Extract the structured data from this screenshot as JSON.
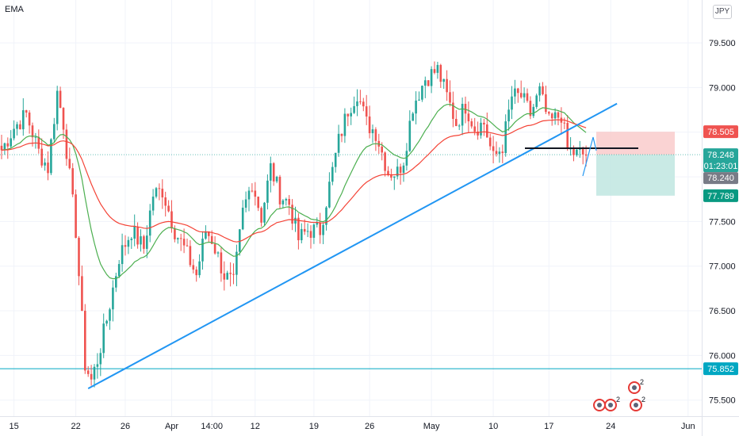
{
  "indicator_label": "EMA",
  "currency_badge": "JPY",
  "colors": {
    "up": "#26a69a",
    "down": "#ef5350",
    "ema_fast": "#4caf50",
    "ema_slow": "#f44336",
    "trendline": "#2196f3",
    "support": "#00a7c2",
    "risk_zone": "#f9c8c8",
    "reward_zone": "#bfe6e1",
    "price_tag": "#26a69a",
    "countdown_tag": "#787b86",
    "stop_tag": "#ef5350",
    "target_tag": "#089981",
    "support_tag": "#00a7c2"
  },
  "chart_data": {
    "type": "candlestick",
    "y_ticks": [
      "79.500",
      "79.000",
      "78.500",
      "78.000",
      "77.500",
      "77.000",
      "76.500",
      "76.000",
      "75.500"
    ],
    "ylim": [
      75.32,
      79.98
    ],
    "x_ticks": [
      "15",
      "22",
      "26",
      "Apr",
      "14:00",
      "12",
      "19",
      "26",
      "May",
      "10",
      "17",
      "24",
      "Jun"
    ],
    "grid": true,
    "price_tags": {
      "stop_loss": "78.505",
      "last_price": "78.248",
      "countdown": "01:23:01",
      "close": "78.240",
      "take_profit": "77.789",
      "support": "75.852"
    },
    "levels": {
      "support": 75.852,
      "horizontal_black": 78.32,
      "last_price": 78.248
    },
    "position": {
      "entry": 78.248,
      "stop": 78.505,
      "target": 77.789
    },
    "trendline": {
      "from": {
        "index": 28,
        "price": 75.63
      },
      "to": {
        "index": 199,
        "price": 78.82
      }
    },
    "candle_keyframes": [
      [
        0,
        78.3
      ],
      [
        4,
        78.55
      ],
      [
        8,
        78.7
      ],
      [
        12,
        78.28
      ],
      [
        15,
        78.1
      ],
      [
        18,
        78.95
      ],
      [
        20,
        78.6
      ],
      [
        24,
        77.4
      ],
      [
        27,
        75.9
      ],
      [
        29,
        75.72
      ],
      [
        31,
        75.95
      ],
      [
        34,
        76.4
      ],
      [
        38,
        77.1
      ],
      [
        42,
        77.4
      ],
      [
        46,
        77.2
      ],
      [
        49,
        77.8
      ],
      [
        52,
        77.85
      ],
      [
        56,
        77.4
      ],
      [
        59,
        77.2
      ],
      [
        63,
        76.9
      ],
      [
        66,
        77.4
      ],
      [
        68,
        77.3
      ],
      [
        72,
        76.9
      ],
      [
        75,
        76.8
      ],
      [
        78,
        77.6
      ],
      [
        81,
        77.95
      ],
      [
        84,
        77.55
      ],
      [
        87,
        78.1
      ],
      [
        90,
        77.8
      ],
      [
        93,
        77.7
      ],
      [
        96,
        77.3
      ],
      [
        99,
        77.4
      ],
      [
        103,
        77.4
      ],
      [
        106,
        77.9
      ],
      [
        109,
        78.4
      ],
      [
        112,
        78.75
      ],
      [
        115,
        78.95
      ],
      [
        118,
        78.6
      ],
      [
        121,
        78.5
      ],
      [
        125,
        78.05
      ],
      [
        128,
        78.05
      ],
      [
        130,
        78.2
      ],
      [
        133,
        78.8
      ],
      [
        137,
        79.1
      ],
      [
        141,
        79.2
      ],
      [
        144,
        78.9
      ],
      [
        147,
        78.6
      ],
      [
        150,
        78.8
      ],
      [
        153,
        78.55
      ],
      [
        156,
        78.6
      ],
      [
        159,
        78.2
      ],
      [
        162,
        78.35
      ],
      [
        165,
        78.9
      ],
      [
        168,
        78.9
      ],
      [
        171,
        78.7
      ],
      [
        174,
        78.95
      ],
      [
        177,
        78.6
      ],
      [
        181,
        78.7
      ],
      [
        183,
        78.3
      ],
      [
        186,
        78.25
      ]
    ],
    "ema_fast_period": 20,
    "ema_slow_period": 50
  }
}
